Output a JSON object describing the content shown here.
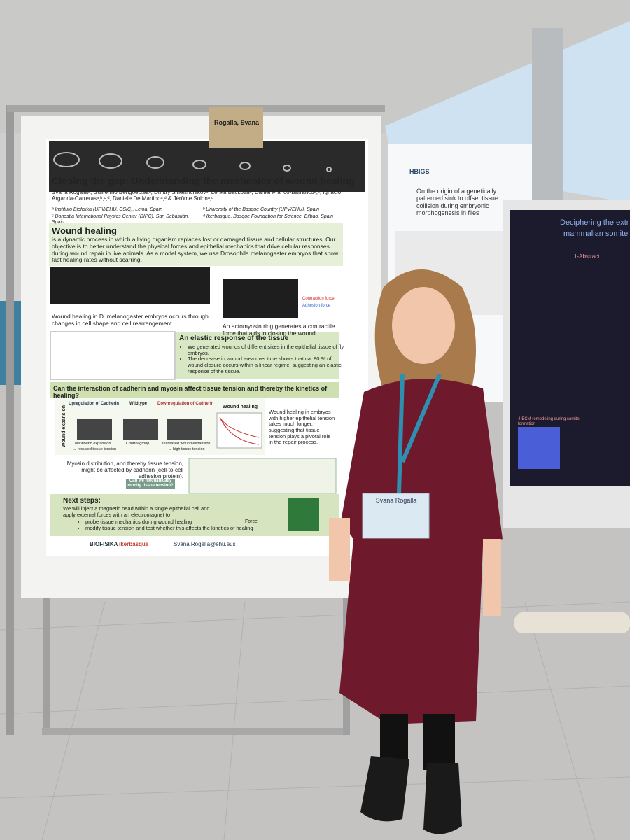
{
  "name_card": "Rogalla, Svana",
  "poster": {
    "title": "Closing the gap: Understanding the mechanics of wound healing",
    "authors": "Svana Rogallaᵃ, Guillermo Bengoetxeaᵃ, Dmitry Sinelshchikovᵃ, Lenka Backovaᵃ, Daniel Franco-Barrancoᵇ,ᶜ, Ignacio Arganda-Carrerasᵃ,ᵇ,ᶜ,ᵈ, Daniele De Martinoᵃ,ᵈ & Jérôme Solonᵃ,ᵈ",
    "affiliations": [
      "ᵃ Instituto Biofisika (UPV/EHU, CSIC), Leioa, Spain",
      "ᵇ University of the Basque Country (UPV/EHU), Spain",
      "ᶜ Donostia International Physics Center (DIPC), San Sebastián, Spain",
      "ᵈ Ikerbasque, Basque Foundation for Science, Bilbao, Spain"
    ],
    "intro_lead": "Wound healing",
    "intro_text": "is a dynamic process in which a living organism replaces lost or damaged tissue and cellular structures. Our objective is to better understand the physical forces and epithelial mechanics that drive cellular responses during wound repair in live animals. As a model system, we use Drosophila melanogaster embryos that show fast healing rates without scarring.",
    "caption_left": "Wound healing in D. melanogaster embryos occurs through changes in cell shape and cell rearrangement.",
    "caption_right": "An actomyosin ring generates a contractile force that aids in closing the wound.",
    "force_legend": [
      "Contraction force",
      "Adhesion force"
    ],
    "elastic_heading": "An elastic response of the tissue",
    "elastic_bullets": [
      "We generated wounds of different sizes in the epithelial tissue of fly embryos.",
      "The decrease in wound area over time shows that ca. 80 % of wound closure occurs within a linear regime, suggesting an elastic response of the tissue."
    ],
    "cadherin_heading": "Can the interaction of cadherin and myosin affect tissue tension and thereby the kinetics of healing?",
    "panel_labels": [
      "Upregulation of Cadherin",
      "Wildtype",
      "Downregulation of Cadherin",
      "Wound healing"
    ],
    "axis_label": "Wound expansion",
    "panel_captions": [
      "Low wound expansion",
      "Control group",
      "Increased wound expansion"
    ],
    "tension_notes": [
      "→ reduced tissue tension",
      "→ high tissue tension"
    ],
    "cadherin_text": "Wound healing in embryos with higher epithelial tension takes much longer, suggesting that tissue tension plays a pivotal role in the repair process.",
    "myosin_text": "Myosin distribution, and thereby tissue tension, might be affected by cadherin (cell-to-cell adhesion protein).",
    "question": "Can we mechanically modify tissue tension?",
    "next_heading": "Next steps:",
    "next_text": "We will inject a magnetic bead within a single epithelial cell and apply external forces with an electromagnet to",
    "next_bullets": [
      "probe tissue mechanics during wound healing",
      "modify tissue tension and test whether this affects the kinetics of healing"
    ],
    "force_label": "Force",
    "logos": [
      "BIOFISIKA",
      "ikerbasque"
    ],
    "email": "Svana.Rogalla@ehu.eus"
  },
  "neighbor_poster": {
    "logo": "HBIGS",
    "title": "On the origin of a genetically patterned sink to offset tissue collision during embryonic morphogenesis in flies"
  },
  "far_poster": {
    "title": "Deciphering the extr",
    "subtitle": "mammalian somite",
    "sections": [
      "1-Abstract",
      "4-ECM remodeling during somite formation"
    ]
  },
  "badge": {
    "name": "Svana Rogalla"
  }
}
